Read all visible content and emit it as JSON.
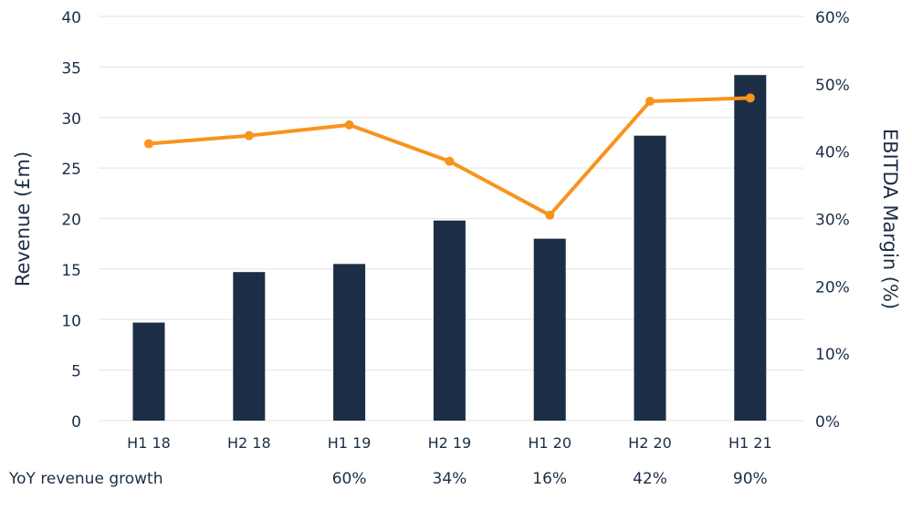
{
  "chart_data": {
    "type": "bar+line",
    "categories": [
      "H1 18",
      "H2 18",
      "H1 19",
      "H2 19",
      "H1 20",
      "H2 20",
      "H1 21"
    ],
    "series": [
      {
        "type": "bar",
        "axis": "left",
        "values": [
          9.7,
          14.7,
          15.5,
          19.8,
          18.0,
          28.2,
          34.2
        ],
        "color": "#1b2e45"
      },
      {
        "type": "line",
        "axis": "right",
        "values": [
          41.1,
          42.3,
          43.9,
          38.5,
          30.5,
          47.4,
          47.9
        ],
        "color": "#f7941d"
      }
    ],
    "ylabel": "Revenue (£m)",
    "ylabel_right": "EBITDA  Margin (%)",
    "ylim": [
      0,
      40
    ],
    "yticks": [
      "0",
      "5",
      "10",
      "15",
      "20",
      "25",
      "30",
      "35",
      "40"
    ],
    "ylim_right": [
      0,
      60
    ],
    "yticks_right": [
      "0%",
      "10%",
      "20%",
      "30%",
      "40%",
      "50%",
      "60%"
    ],
    "grid": true,
    "growth_row": {
      "label": "YoY revenue growth",
      "values": [
        "",
        "",
        "60%",
        "34%",
        "16%",
        "42%",
        "90%"
      ]
    }
  }
}
